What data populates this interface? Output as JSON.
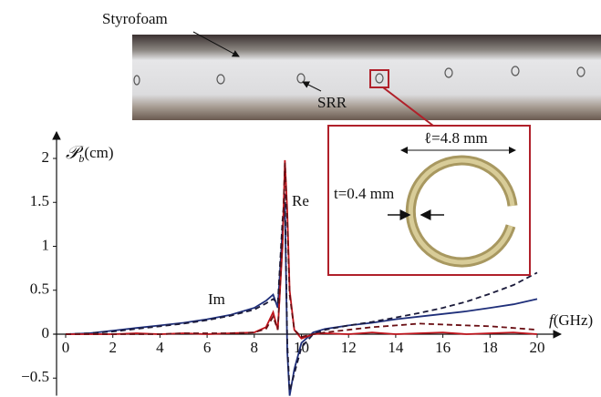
{
  "chart_data": {
    "type": "line",
    "x": [
      0,
      1,
      2,
      3,
      4,
      5,
      6,
      7,
      8,
      8.5,
      8.8,
      9,
      9.2,
      9.3,
      9.4,
      9.5,
      9.7,
      10,
      10.5,
      11,
      12,
      13,
      14,
      15,
      16,
      17,
      18,
      19,
      20
    ],
    "series": [
      {
        "color": "#1f2f7a",
        "style": "solid",
        "values": [
          0,
          0.01,
          0.04,
          0.07,
          0.1,
          0.13,
          0.17,
          0.22,
          0.3,
          0.38,
          0.45,
          0.3,
          1.2,
          1.5,
          -0.2,
          -0.7,
          -0.4,
          -0.1,
          0.02,
          0.06,
          0.1,
          0.13,
          0.17,
          0.2,
          0.23,
          0.26,
          0.3,
          0.34,
          0.4
        ]
      },
      {
        "color": "#1a1a3a",
        "style": "dashed",
        "values": [
          0,
          0.01,
          0.03,
          0.06,
          0.09,
          0.12,
          0.16,
          0.21,
          0.28,
          0.35,
          0.4,
          0.35,
          1.3,
          1.6,
          -0.1,
          -0.65,
          -0.45,
          -0.15,
          0.0,
          0.05,
          0.1,
          0.14,
          0.19,
          0.24,
          0.3,
          0.37,
          0.46,
          0.56,
          0.7
        ]
      },
      {
        "color": "#c0141c",
        "style": "solid",
        "values": [
          0,
          0,
          0,
          0.01,
          0,
          0.01,
          0,
          0.01,
          0.02,
          0.08,
          0.25,
          0.05,
          1.0,
          1.98,
          1.4,
          0.5,
          0.05,
          -0.05,
          0,
          0.01,
          0,
          0.02,
          0,
          0.01,
          0.02,
          0,
          0.01,
          0.02,
          0
        ]
      },
      {
        "color": "#6a0f14",
        "style": "dashed",
        "values": [
          0,
          0,
          0,
          0,
          0,
          0.01,
          0.01,
          0.01,
          0.02,
          0.06,
          0.2,
          0.05,
          1.1,
          1.95,
          1.3,
          0.45,
          0.05,
          -0.03,
          0,
          0.02,
          0.05,
          0.08,
          0.1,
          0.12,
          0.11,
          0.1,
          0.09,
          0.07,
          0.05
        ]
      }
    ],
    "xlim": [
      -0.5,
      21
    ],
    "ylim": [
      -0.7,
      2.3
    ],
    "xticks": [
      0,
      2,
      4,
      6,
      8,
      10,
      12,
      14,
      16,
      18,
      20
    ],
    "yticks": [
      {
        "value": -0.5,
        "label": "−0.5"
      },
      0,
      0.5,
      1,
      1.5,
      2
    ],
    "ylabel": {
      "symbol": "𝒫",
      "sub": "b",
      "unit": "(cm)"
    },
    "xlabel": {
      "symbol": "f",
      "unit": "(GHz)"
    },
    "curve_labels": [
      "Re",
      "Im"
    ],
    "photo_labels": {
      "foam": "Styrofoam",
      "ring": "SRR"
    },
    "inset_labels": {
      "length": "ℓ=4.8 mm",
      "thickness": "t=0.4 mm"
    }
  }
}
